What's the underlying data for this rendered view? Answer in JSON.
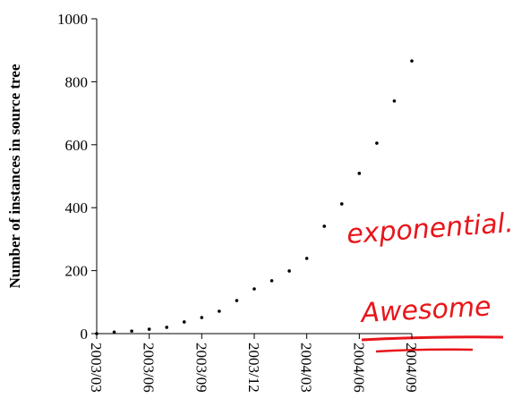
{
  "chart_data": {
    "type": "line",
    "y_label": "Number of instances in source tree",
    "categories": [
      "2003/03",
      null,
      null,
      "2003/06",
      null,
      null,
      "2003/09",
      null,
      null,
      "2003/12",
      null,
      null,
      "2004/03",
      null,
      null,
      "2004/06",
      null,
      null,
      "2004/09"
    ],
    "values": [
      0,
      5,
      8,
      14,
      20,
      37,
      51,
      71,
      105,
      142,
      168,
      199,
      239,
      341,
      412,
      509,
      605,
      739,
      866
    ],
    "color": "#000000",
    "ylim": [
      0,
      1000
    ],
    "yticks": [
      0,
      200,
      400,
      600,
      800,
      1000
    ],
    "annotations": [
      "exponential.",
      "Awesome"
    ],
    "annotation_color": "#e8151b"
  }
}
